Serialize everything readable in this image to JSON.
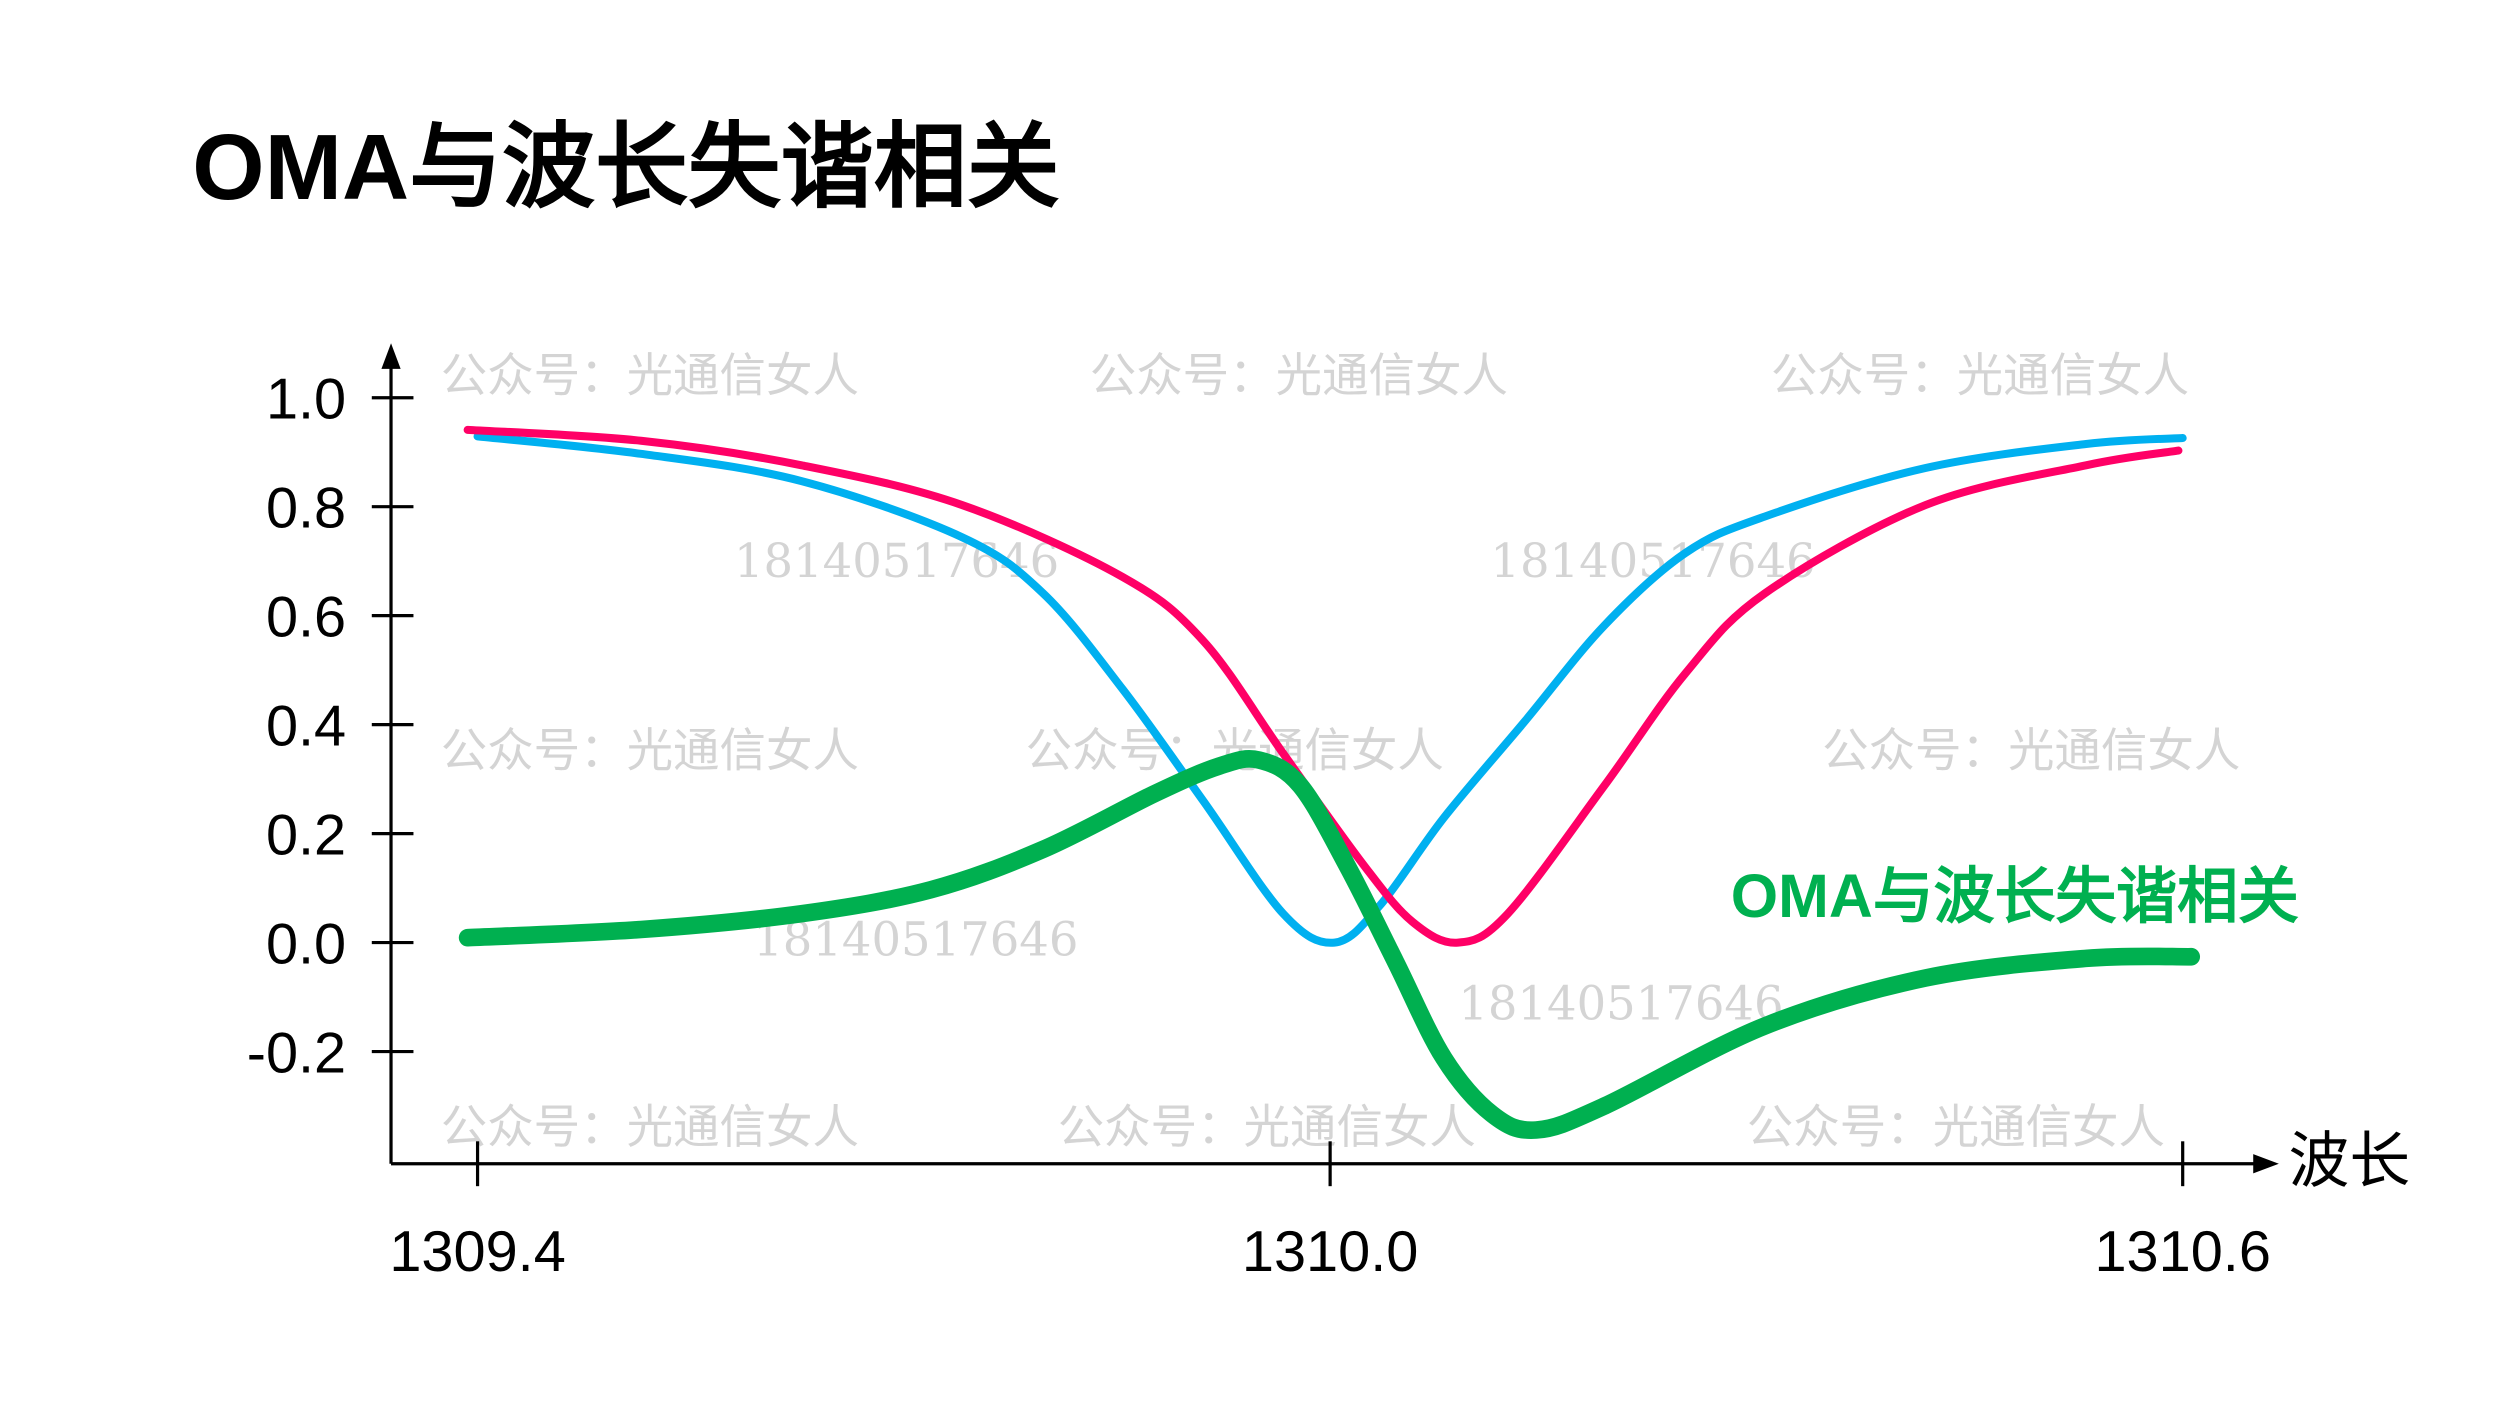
{
  "title": "OMA与波长失谐相关",
  "watermarks": {
    "account": "公众号：光通信女人",
    "phone": "18140517646"
  },
  "chart_data": {
    "type": "line",
    "title": "OMA与波长失谐相关",
    "xlabel": "波长",
    "ylabel": "",
    "xlim": [
      1309.4,
      1310.6
    ],
    "ylim": [
      -0.2,
      1.0
    ],
    "x_ticks": [
      "1309.4",
      "1310.0",
      "1310.6"
    ],
    "x_tick_values": [
      1309.4,
      1310.0,
      1310.6
    ],
    "y_ticks": [
      "1.0",
      "0.8",
      "0.6",
      "0.4",
      "0.2",
      "0.0",
      "-0.2"
    ],
    "y_tick_values": [
      1.0,
      0.8,
      0.6,
      0.4,
      0.2,
      0.0,
      -0.2
    ],
    "grid": false,
    "annotation": "OMA与波长失谐相关",
    "series": [
      {
        "name": "blue",
        "color": "#00b0f0",
        "width": 5,
        "x": [
          1309.4,
          1309.515,
          1309.628,
          1309.741,
          1309.798,
          1309.854,
          1309.911,
          1309.967,
          1310.003,
          1310.035,
          1310.08,
          1310.137,
          1310.193,
          1310.25,
          1310.306,
          1310.419,
          1310.532,
          1310.6
        ],
        "y": [
          0.929,
          0.897,
          0.847,
          0.744,
          0.641,
          0.465,
          0.259,
          0.053,
          0.0,
          0.068,
          0.229,
          0.406,
          0.582,
          0.715,
          0.782,
          0.871,
          0.915,
          0.926
        ]
      },
      {
        "name": "pink",
        "color": "#ff0066",
        "width": 5,
        "x": [
          1309.393,
          1309.515,
          1309.628,
          1309.741,
          1309.854,
          1309.911,
          1309.967,
          1310.024,
          1310.058,
          1310.09,
          1310.125,
          1310.193,
          1310.25,
          1310.306,
          1310.419,
          1310.532,
          1310.597
        ],
        "y": [
          0.941,
          0.921,
          0.876,
          0.803,
          0.671,
          0.553,
          0.347,
          0.141,
          0.038,
          0.0,
          0.053,
          0.288,
          0.494,
          0.641,
          0.803,
          0.876,
          0.903
        ]
      },
      {
        "name": "OMA与波长失谐相关",
        "color": "#00b050",
        "width": 11,
        "x": [
          1309.393,
          1309.515,
          1309.628,
          1309.719,
          1309.798,
          1309.877,
          1309.922,
          1309.95,
          1309.979,
          1310.012,
          1310.046,
          1310.08,
          1310.114,
          1310.145,
          1310.193,
          1310.306,
          1310.419,
          1310.532,
          1310.606
        ],
        "y": [
          0.009,
          0.024,
          0.053,
          0.097,
          0.171,
          0.274,
          0.324,
          0.335,
          0.288,
          0.141,
          -0.035,
          -0.212,
          -0.315,
          -0.344,
          -0.3,
          -0.153,
          -0.065,
          -0.029,
          -0.026
        ]
      }
    ]
  }
}
